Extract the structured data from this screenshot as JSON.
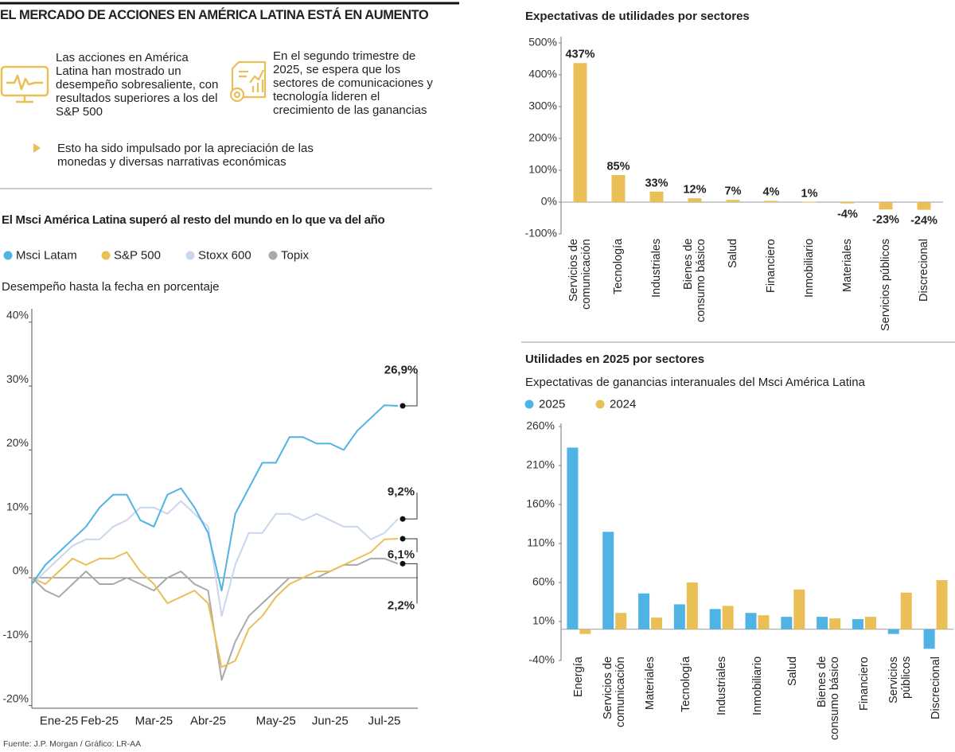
{
  "header": {
    "title": "EL MERCADO DE ACCIONES EN AMÉRICA LATINA ESTÁ EN AUMENTO",
    "highlights": [
      "Las acciones en América Latina han mostrado un desempeño sobresaliente, con resultados superiores a los del S&P 500",
      "En el segundo trimestre de 2025, se espera que los sectores de comunicaciones y tecnología lideren el crecimiento de las ganancias",
      "Esto ha sido impulsado por la apreciación de las monedas y diversas narrativas económicas"
    ]
  },
  "chart_data": [
    {
      "type": "line",
      "title": "El Msci América Latina superó al resto del mundo en lo que va del año",
      "subtitle": "Desempeño hasta la fecha en porcentaje",
      "categories": [
        null,
        null,
        "Ene-25",
        null,
        null,
        "Feb-25",
        null,
        null,
        null,
        "Mar-25",
        null,
        null,
        null,
        "Abr-25",
        null,
        null,
        null,
        null,
        "May-25",
        null,
        null,
        null,
        "Jun-25",
        null,
        null,
        null,
        "Jul-25",
        null
      ],
      "series": [
        {
          "name": "Msci Latam",
          "color": "#4fb3e3",
          "values": [
            -1,
            2,
            4,
            6,
            8,
            11,
            13,
            13,
            9,
            8,
            13,
            14,
            11,
            7,
            -2,
            10,
            14,
            18,
            18,
            22,
            22,
            21,
            21,
            20,
            23,
            25,
            27,
            26.9
          ],
          "value_labels": [
            null,
            null,
            null,
            null,
            null,
            null,
            null,
            null,
            null,
            null,
            null,
            null,
            null,
            null,
            null,
            null,
            null,
            null,
            null,
            null,
            null,
            null,
            null,
            null,
            null,
            null,
            null,
            "26,9%"
          ]
        },
        {
          "name": "S&P 500",
          "color": "#e9bf56",
          "values": [
            0,
            -1,
            1,
            3,
            2,
            3,
            3,
            4,
            1,
            -1,
            -4,
            -3,
            -2,
            -4,
            -14,
            -13,
            -8,
            -6,
            -3,
            -1,
            0,
            1,
            1,
            2,
            3,
            4,
            6,
            6.1
          ],
          "value_labels": [
            null,
            null,
            null,
            null,
            null,
            null,
            null,
            null,
            null,
            null,
            null,
            null,
            null,
            null,
            null,
            null,
            null,
            null,
            null,
            null,
            null,
            null,
            null,
            null,
            null,
            null,
            null,
            "6,1%"
          ]
        },
        {
          "name": "Stoxx 600",
          "color": "#c8d6ee",
          "values": [
            -1,
            1,
            3,
            5,
            6,
            6,
            8,
            9,
            11,
            11,
            10,
            12,
            10,
            8,
            -6,
            2,
            7,
            7,
            10,
            10,
            9,
            10,
            9,
            8,
            8,
            6,
            7,
            9.2
          ],
          "value_labels": [
            null,
            null,
            null,
            null,
            null,
            null,
            null,
            null,
            null,
            null,
            null,
            null,
            null,
            null,
            null,
            null,
            null,
            null,
            null,
            null,
            null,
            null,
            null,
            null,
            null,
            null,
            null,
            "9,2%"
          ]
        },
        {
          "name": "Topix",
          "color": "#a9a9a9",
          "values": [
            0,
            -2,
            -3,
            -1,
            1,
            -1,
            -1,
            0,
            -1,
            -2,
            0,
            1,
            -1,
            -2,
            -16,
            -10,
            -6,
            -4,
            -2,
            0,
            0,
            0,
            1,
            2,
            2,
            3,
            3,
            2.2
          ],
          "value_labels": [
            null,
            null,
            null,
            null,
            null,
            null,
            null,
            null,
            null,
            null,
            null,
            null,
            null,
            null,
            null,
            null,
            null,
            null,
            null,
            null,
            null,
            null,
            null,
            null,
            null,
            null,
            null,
            "2,2%"
          ]
        }
      ],
      "ylim": [
        -20,
        40
      ],
      "yticks": [
        {
          "value": -20,
          "label": "-20%"
        },
        {
          "value": -10,
          "label": "-10%"
        },
        {
          "value": 0,
          "label": "0%"
        },
        {
          "value": 10,
          "label": "10%"
        },
        {
          "value": 20,
          "label": "20%"
        },
        {
          "value": 30,
          "label": "30%"
        },
        {
          "value": 40,
          "label": "40%"
        }
      ]
    },
    {
      "type": "bar",
      "title": "Expectativas de utilidades por sectores",
      "categories": [
        "Servicios de comunicación",
        "Tecnología",
        "Industriales",
        "Bienes de consumo básico",
        "Salud",
        "Financiero",
        "Inmobiliario",
        "Materiales",
        "Servicios públicos",
        "Discrecional"
      ],
      "values": [
        437,
        85,
        33,
        12,
        7,
        4,
        1,
        -4,
        -23,
        -24
      ],
      "value_labels": [
        "437%",
        "85%",
        "33%",
        "12%",
        "7%",
        "4%",
        "1%",
        "-4%",
        "-23%",
        "-24%"
      ],
      "color": "#e9bf56",
      "ylim": [
        -100,
        500
      ],
      "yticks": [
        {
          "value": -100,
          "label": "-100%"
        },
        {
          "value": 0,
          "label": "0%"
        },
        {
          "value": 100,
          "label": "100%"
        },
        {
          "value": 200,
          "label": "200%"
        },
        {
          "value": 300,
          "label": "300%"
        },
        {
          "value": 400,
          "label": "400%"
        },
        {
          "value": 500,
          "label": "500%"
        }
      ]
    },
    {
      "type": "grouped_bar",
      "title": "Utilidades en 2025 por sectores",
      "subtitle": "Expectativas de ganancias interanuales del Msci América Latina",
      "categories": [
        "Energía",
        "Servicios de comunicación",
        "Materiales",
        "Tecnología",
        "Industriales",
        "Inmobiliario",
        "Salud",
        "Bienes de consumo básico",
        "Financiero",
        "Servicios públicos",
        "Discrecional"
      ],
      "series": [
        {
          "name": "2025",
          "color": "#4fb3e3",
          "values": [
            233,
            125,
            46,
            32,
            26,
            21,
            16,
            16,
            13,
            -6,
            -25
          ]
        },
        {
          "name": "2024",
          "color": "#e9bf56",
          "values": [
            -6,
            21,
            15,
            60,
            30,
            18,
            51,
            14,
            16,
            47,
            63
          ]
        }
      ],
      "ylim": [
        -40,
        260
      ],
      "yticks": [
        {
          "value": -40,
          "label": "-40%"
        },
        {
          "value": 10,
          "label": "10%"
        },
        {
          "value": 60,
          "label": "60%"
        },
        {
          "value": 110,
          "label": "110%"
        },
        {
          "value": 160,
          "label": "160%"
        },
        {
          "value": 210,
          "label": "210%"
        },
        {
          "value": 260,
          "label": "260%"
        }
      ]
    }
  ],
  "source": "Fuente: J.P. Morgan / Gráfico: LR-AA"
}
